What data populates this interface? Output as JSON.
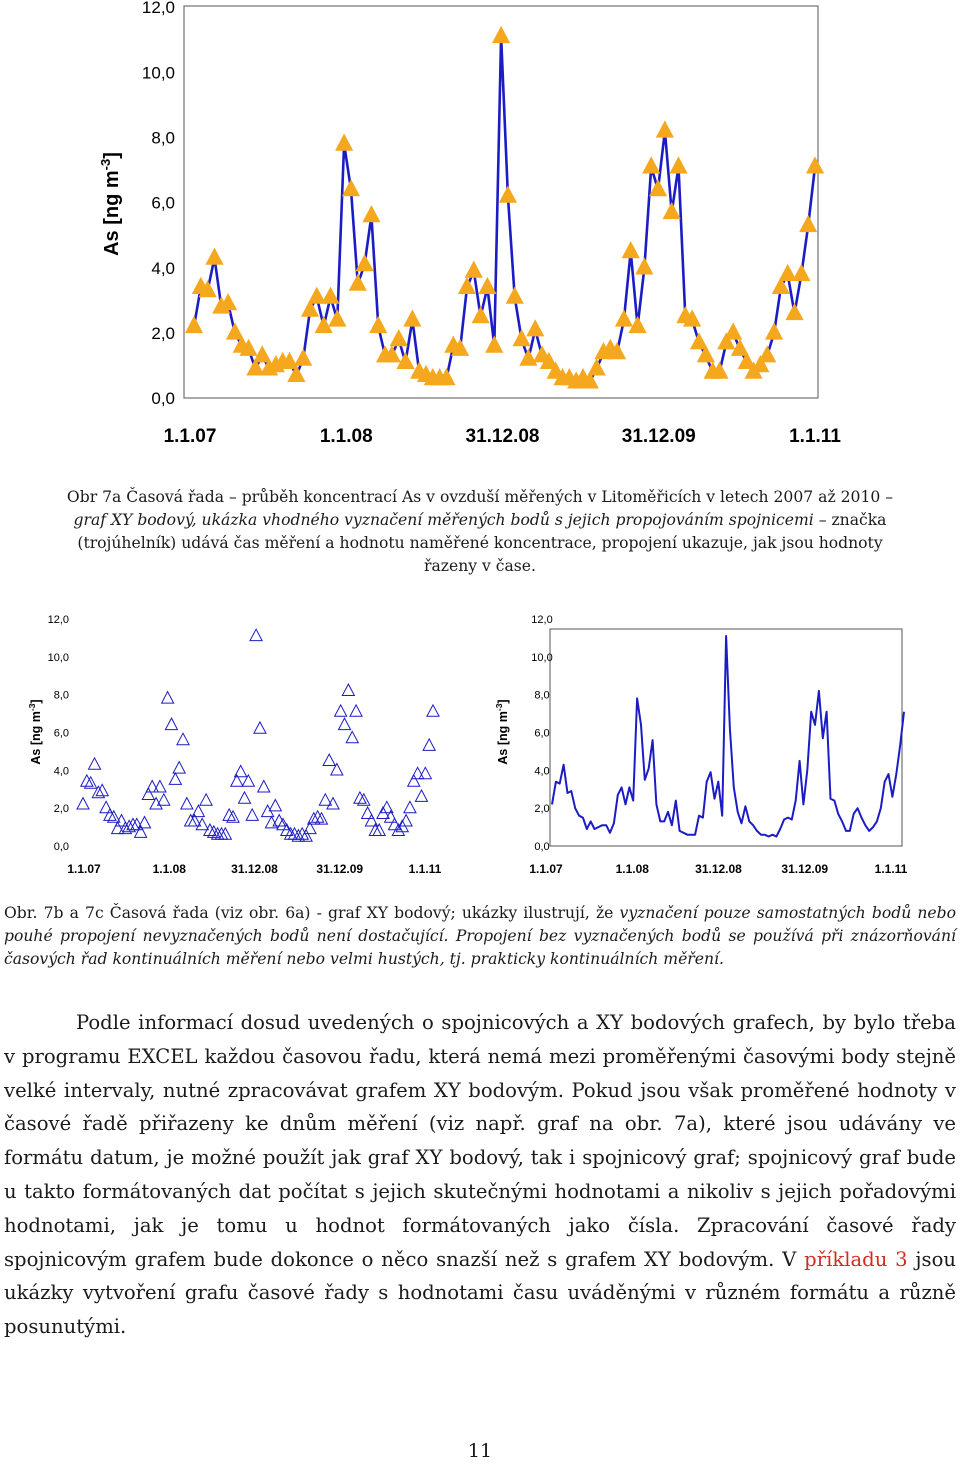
{
  "chart_data": [
    {
      "id": "fig7a",
      "type": "scatter",
      "subtype": "xy-markers-and-lines",
      "marker": "triangle",
      "marker_color": "#f5a81d",
      "line_color": "#1c1cc4",
      "ylabel": "As [ng m",
      "ylabel_sup": "-3",
      "ylabel_close": "]",
      "ylim": [
        0,
        12
      ],
      "yticks": [
        0,
        2,
        4,
        6,
        8,
        10,
        12
      ],
      "ytick_labels": [
        "0,0",
        "2,0",
        "4,0",
        "6,0",
        "8,0",
        "10,0",
        "12,0"
      ],
      "xtick_labels": [
        "1.1.07",
        "1.1.08",
        "31.12.08",
        "31.12.09",
        "1.1.11"
      ],
      "grid": false,
      "values": [
        2.2,
        3.4,
        3.3,
        4.3,
        2.8,
        2.9,
        2.0,
        1.6,
        1.5,
        0.9,
        1.3,
        0.9,
        1.0,
        1.1,
        1.1,
        0.7,
        1.2,
        2.7,
        3.1,
        2.2,
        3.1,
        2.4,
        7.8,
        6.4,
        3.5,
        4.1,
        5.6,
        2.2,
        1.3,
        1.3,
        1.8,
        1.1,
        2.4,
        0.8,
        0.7,
        0.6,
        0.6,
        0.6,
        1.6,
        1.5,
        3.4,
        3.9,
        2.5,
        3.4,
        1.6,
        11.1,
        6.2,
        3.1,
        1.8,
        1.2,
        2.1,
        1.3,
        1.1,
        0.8,
        0.6,
        0.6,
        0.5,
        0.6,
        0.5,
        0.9,
        1.4,
        1.5,
        1.4,
        2.4,
        4.5,
        2.2,
        4.0,
        7.1,
        6.4,
        8.2,
        5.7,
        7.1,
        2.5,
        2.4,
        1.7,
        1.3,
        0.8,
        0.8,
        1.7,
        2.0,
        1.5,
        1.1,
        0.8,
        1.0,
        1.3,
        2.0,
        3.4,
        3.8,
        2.6,
        3.8,
        5.3,
        7.1
      ]
    },
    {
      "id": "fig7b",
      "type": "scatter",
      "subtype": "xy-markers-only",
      "marker": "open-triangle",
      "marker_color": "#1c1cc4",
      "ylabel": "As [ng m",
      "ylabel_sup": "-3",
      "ylabel_close": "]",
      "ylim": [
        0,
        12
      ],
      "ytick_labels": [
        "0,0",
        "2,0",
        "4,0",
        "6,0",
        "8,0",
        "10,0",
        "12,0"
      ],
      "xtick_labels": [
        "1.1.07",
        "1.1.08",
        "31.12.08",
        "31.12.09",
        "1.1.11"
      ]
    },
    {
      "id": "fig7c",
      "type": "line",
      "subtype": "xy-lines-only",
      "line_color": "#1c1cc4",
      "ylabel": "As [ng m",
      "ylabel_sup": "-3",
      "ylabel_close": "]",
      "ylim": [
        0,
        12
      ],
      "ytick_labels": [
        "0,0",
        "2,0",
        "4,0",
        "6,0",
        "8,0",
        "10,0",
        "12,0"
      ],
      "xtick_labels": [
        "1.1.07",
        "1.1.08",
        "31.12.08",
        "31.12.09",
        "1.1.11"
      ]
    }
  ],
  "captions": {
    "fig7a_line1": "Obr 7a Časová řada – průběh koncentrací As v ovzduší měřených v Litoměřicích v letech 2007 až 2010 –",
    "fig7a_line2_italic": "graf XY bodový, ukázka vhodného vyznačení měřených bodů s jejich propojováním spojnicemi",
    "fig7a_line2_rest": " – značka",
    "fig7a_line3": "(trojúhelník) udává čas měření a hodnotu naměřené koncentrace, propojení ukazuje, jak jsou hodnoty",
    "fig7a_line4": "řazeny v čase.",
    "fig7bc_a": "Obr. 7b a 7c Časová řada (viz obr. 6a) - graf XY bodový; ukázky ilustrují, že ",
    "fig7bc_b_italic": "vyznačení pouze samostatných bodů nebo pouhé propojení nevyznačených bodů není dostačující. Propojení bez vyznačených bodů se používá při znázorňování časových řad kontinuálních měření nebo velmi hustých, tj.  prakticky  kontinuálních měření."
  },
  "body": {
    "part1": "Podle informací dosud uvedených o spojnicových a XY bodových grafech, by bylo třeba v programu EXCEL každou časovou řadu, která nemá mezi proměřenými časovými body stejně velké intervaly, nutné zpracovávat grafem XY bodovým. Pokud jsou však proměřené hodnoty v časové řadě přiřazeny ke dnům měření (viz např. graf na obr. 7a), které jsou udávány ve formátu datum, je možné použít jak graf XY bodový, tak i spojnicový graf; spojnicový graf bude u takto formátovaných dat počítat s jejich skutečnými hodnotami a nikoliv s jejich pořadovými hodnotami, jak je tomu u hodnot formátovaných jako čísla. Zpracování časové řady spojnicovým grafem bude dokonce o něco snazší než s grafem XY bodovým. V ",
    "highlight": "příkladu 3",
    "part2": " jsou ukázky vytvoření grafu časové řady s hodnotami času uváděnými v různém formátu a různě posunutými."
  },
  "page_number": "11"
}
